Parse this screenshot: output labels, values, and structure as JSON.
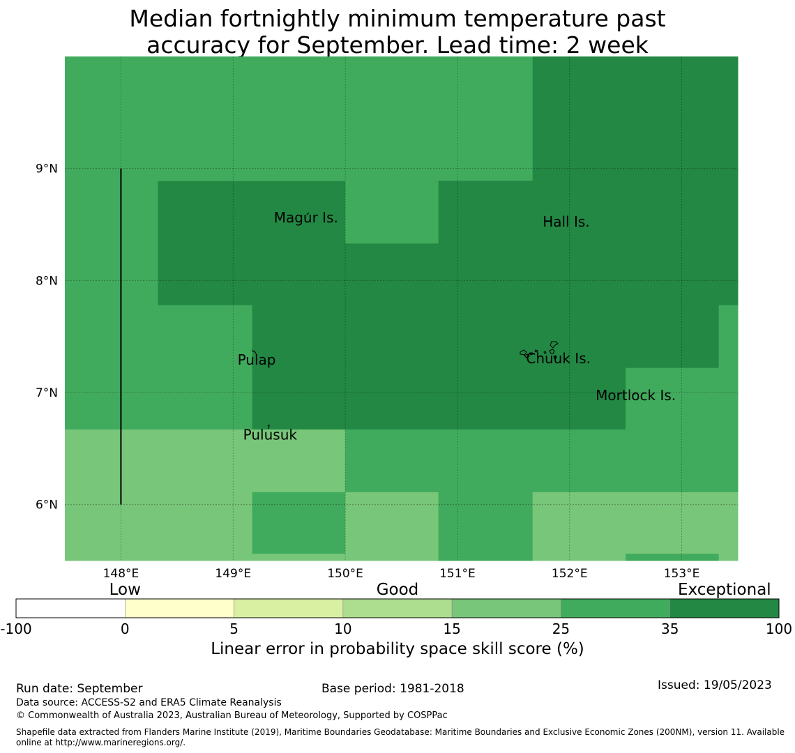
{
  "title": {
    "line1": "Median fortnightly minimum temperature past",
    "line2": "accuracy for September. Lead time: 2 week"
  },
  "colors": {
    "c35": "#228844",
    "c25": "#41ab5d",
    "c15": "#78c679",
    "c10": "#addd8e",
    "c5": "#d9f0a3",
    "c0": "#ffffcc",
    "cneg": "#ffffff"
  },
  "map": {
    "lon_range": [
      147.5,
      153.5
    ],
    "lat_range": [
      5.5,
      10.0
    ],
    "lon_ticks": [
      {
        "value": 148,
        "label": "148°E"
      },
      {
        "value": 149,
        "label": "149°E"
      },
      {
        "value": 150,
        "label": "150°E"
      },
      {
        "value": 151,
        "label": "151°E"
      },
      {
        "value": 152,
        "label": "152°E"
      },
      {
        "value": 153,
        "label": "153°E"
      }
    ],
    "lat_ticks": [
      {
        "value": 6,
        "label": "6°N"
      },
      {
        "value": 7,
        "label": "7°N"
      },
      {
        "value": 8,
        "label": "8°N"
      },
      {
        "value": 9,
        "label": "9°N"
      }
    ],
    "grid_cells": [
      {
        "lon0": 147.5,
        "lon1": 151.67,
        "lat0": 9.11,
        "lat1": 10.0,
        "class": "c25"
      },
      {
        "lon0": 151.67,
        "lon1": 153.5,
        "lat0": 9.11,
        "lat1": 10.0,
        "class": "c35"
      },
      {
        "lon0": 147.5,
        "lon1": 148.33,
        "lat0": 6.67,
        "lat1": 9.11,
        "class": "c25"
      },
      {
        "lon0": 148.33,
        "lon1": 150.0,
        "lat0": 7.78,
        "lat1": 8.89,
        "class": "c35"
      },
      {
        "lon0": 148.33,
        "lon1": 150.0,
        "lat0": 8.89,
        "lat1": 9.11,
        "class": "c25"
      },
      {
        "lon0": 148.33,
        "lon1": 149.17,
        "lat0": 6.67,
        "lat1": 7.78,
        "class": "c25"
      },
      {
        "lon0": 150.0,
        "lon1": 150.83,
        "lat0": 8.33,
        "lat1": 9.11,
        "class": "c25"
      },
      {
        "lon0": 150.83,
        "lon1": 151.67,
        "lat0": 8.89,
        "lat1": 9.11,
        "class": "c25"
      },
      {
        "lon0": 150.83,
        "lon1": 151.67,
        "lat0": 8.33,
        "lat1": 8.89,
        "class": "c35"
      },
      {
        "lon0": 151.67,
        "lon1": 153.5,
        "lat0": 7.78,
        "lat1": 9.11,
        "class": "c35"
      },
      {
        "lon0": 149.17,
        "lon1": 153.33,
        "lat0": 7.22,
        "lat1": 8.33,
        "class": "c35"
      },
      {
        "lon0": 153.33,
        "lon1": 153.5,
        "lat0": 7.22,
        "lat1": 7.78,
        "class": "c25"
      },
      {
        "lon0": 149.17,
        "lon1": 152.5,
        "lat0": 6.67,
        "lat1": 7.22,
        "class": "c35"
      },
      {
        "lon0": 152.5,
        "lon1": 153.5,
        "lat0": 6.11,
        "lat1": 7.22,
        "class": "c25"
      },
      {
        "lon0": 147.5,
        "lon1": 150.0,
        "lat0": 6.11,
        "lat1": 6.67,
        "class": "c15"
      },
      {
        "lon0": 150.0,
        "lon1": 152.5,
        "lat0": 6.11,
        "lat1": 6.67,
        "class": "c25"
      },
      {
        "lon0": 147.5,
        "lon1": 149.17,
        "lat0": 5.5,
        "lat1": 6.11,
        "class": "c15"
      },
      {
        "lon0": 149.17,
        "lon1": 150.0,
        "lat0": 5.56,
        "lat1": 6.11,
        "class": "c25"
      },
      {
        "lon0": 149.17,
        "lon1": 150.0,
        "lat0": 5.5,
        "lat1": 5.56,
        "class": "c15"
      },
      {
        "lon0": 150.0,
        "lon1": 150.83,
        "lat0": 5.5,
        "lat1": 6.11,
        "class": "c15"
      },
      {
        "lon0": 150.83,
        "lon1": 151.67,
        "lat0": 5.5,
        "lat1": 6.11,
        "class": "c25"
      },
      {
        "lon0": 151.67,
        "lon1": 153.5,
        "lat0": 5.56,
        "lat1": 6.11,
        "class": "c15"
      },
      {
        "lon0": 151.67,
        "lon1": 152.5,
        "lat0": 5.5,
        "lat1": 5.56,
        "class": "c15"
      },
      {
        "lon0": 152.5,
        "lon1": 153.33,
        "lat0": 5.5,
        "lat1": 5.56,
        "class": "c25"
      },
      {
        "lon0": 153.33,
        "lon1": 153.5,
        "lat0": 5.5,
        "lat1": 5.56,
        "class": "c15"
      }
    ],
    "boundary_line": {
      "lon": 148.0,
      "lat_from": 6.0,
      "lat_to": 9.0
    },
    "places": [
      {
        "name": "Magur Is.",
        "lon": 149.65,
        "lat": 8.52
      },
      {
        "name": "Hall Is.",
        "lon": 151.97,
        "lat": 8.48
      },
      {
        "name": "Pulap",
        "lon": 149.21,
        "lat": 7.25
      },
      {
        "name": "Chuuk Is.",
        "lon": 151.9,
        "lat": 7.26
      },
      {
        "name": "Mortlock Is.",
        "lon": 152.59,
        "lat": 6.93
      },
      {
        "name": "Pulusuk",
        "lon": 149.33,
        "lat": 6.58
      }
    ]
  },
  "colorbar": {
    "boundaries": [
      "-100",
      "0",
      "5",
      "10",
      "15",
      "25",
      "35",
      "100"
    ],
    "colors": [
      "cneg",
      "c0",
      "c5",
      "c10",
      "c15",
      "c25",
      "c35"
    ],
    "categories": [
      {
        "label": "Low",
        "at_index": 1
      },
      {
        "label": "Good",
        "at_index": 3.5
      },
      {
        "label": "Exceptional",
        "at_index": 6.5
      }
    ],
    "label": "Linear error in probability space skill score (%)"
  },
  "footer": {
    "run_date": "Run date: September",
    "base_period": "Base period: 1981-2018",
    "issued": "Issued: 19/05/2023",
    "data_source": "Data source: ACCESS-S2 and ERA5 Climate Reanalysis",
    "copyright": "© Commonwealth of Australia 2023, Australian Bureau of Meteorology, Supported by COSPPac",
    "shapefile_line1": "Shapefile data extracted from Flanders Marine Institute (2019), Maritime Boundaries Geodatabase: Maritime Boundaries and Exclusive Economic Zones (200NM), version 11. Available",
    "shapefile_line2": "online at http://www.marineregions.org/."
  }
}
